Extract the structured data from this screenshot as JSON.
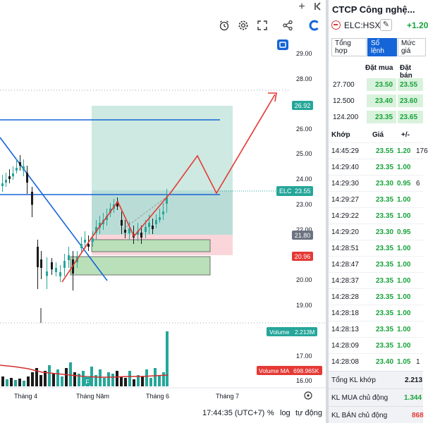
{
  "window": {
    "plus_icon": "plus-icon",
    "collapse_icon": "arrow-left-bar-icon"
  },
  "toolbar": {
    "icons": [
      "alarm-clock-icon",
      "gear-icon",
      "fullscreen-icon",
      "share-icon",
      "tv-logo-icon"
    ]
  },
  "chart": {
    "price_axis": [
      "29.00",
      "28.00",
      "27.00",
      "26.00",
      "25.00",
      "24.00",
      "23.00",
      "22.00",
      "21.00",
      "20.00",
      "19.00",
      "17.00",
      "16.00"
    ],
    "tags": {
      "target": "26.92",
      "last_label": "ELC",
      "last_value": "23.55",
      "stop_top": "21.80",
      "stop": "20.96",
      "volume_label": "Volume",
      "volume_value": "2.213M",
      "vol_ma_label": "Volume MA",
      "vol_ma_value": "698.965K"
    },
    "time_axis": [
      "Tháng 4",
      "Tháng Năm",
      "Tháng 6",
      "Tháng 7"
    ],
    "colors": {
      "up": "#26a69a",
      "down": "#1b1b1b",
      "accent": "#1565d8",
      "red": "#e53935",
      "green_zone": "#cfe8d9",
      "red_zone": "#f9d5d8"
    }
  },
  "bottom": {
    "time": "17:44:35 (UTC+7)",
    "percent": "%",
    "log": "log",
    "auto": "tự động"
  },
  "stock": {
    "title": "CTCP Công nghệ...",
    "ticker": "ELC:HSX",
    "change": "+1.20"
  },
  "tabs": [
    "Tổng hợp",
    "Sổ lệnh",
    "Mức giá"
  ],
  "orderbook": {
    "head_bid": "Đặt mua",
    "head_ask": "Đặt bán",
    "rows": [
      {
        "vol": "27.700",
        "bid": "23.50",
        "ask": "23.55"
      },
      {
        "vol": "12.500",
        "bid": "23.40",
        "ask": "23.60"
      },
      {
        "vol": "124.200",
        "bid": "23.35",
        "ask": "23.65"
      }
    ]
  },
  "matches": {
    "head_time": "Khớp",
    "head_price": "Giá",
    "head_change": "+/-",
    "rows": [
      {
        "time": "14:45:29",
        "price": "23.55",
        "change": "1.20",
        "vol": "176"
      },
      {
        "time": "14:29:40",
        "price": "23.35",
        "change": "1.00",
        "vol": ""
      },
      {
        "time": "14:29:30",
        "price": "23.30",
        "change": "0.95",
        "vol": "6"
      },
      {
        "time": "14:29:27",
        "price": "23.35",
        "change": "1.00",
        "vol": ""
      },
      {
        "time": "14:29:22",
        "price": "23.35",
        "change": "1.00",
        "vol": ""
      },
      {
        "time": "14:29:20",
        "price": "23.30",
        "change": "0.95",
        "vol": ""
      },
      {
        "time": "14:28:51",
        "price": "23.35",
        "change": "1.00",
        "vol": ""
      },
      {
        "time": "14:28:47",
        "price": "23.35",
        "change": "1.00",
        "vol": ""
      },
      {
        "time": "14:28:37",
        "price": "23.35",
        "change": "1.00",
        "vol": ""
      },
      {
        "time": "14:28:28",
        "price": "23.35",
        "change": "1.00",
        "vol": ""
      },
      {
        "time": "14:28:18",
        "price": "23.35",
        "change": "1.00",
        "vol": ""
      },
      {
        "time": "14:28:13",
        "price": "23.35",
        "change": "1.00",
        "vol": ""
      },
      {
        "time": "14:28:09",
        "price": "23.35",
        "change": "1.00",
        "vol": ""
      },
      {
        "time": "14:28:08",
        "price": "23.40",
        "change": "1.05",
        "vol": "1"
      }
    ]
  },
  "summary": {
    "total_label": "Tổng KL khớp",
    "total_value": "2.213",
    "buy_label": "KL MUA chủ động",
    "buy_value": "1.344",
    "sell_label": "KL BÁN chủ động",
    "sell_value": "868"
  }
}
